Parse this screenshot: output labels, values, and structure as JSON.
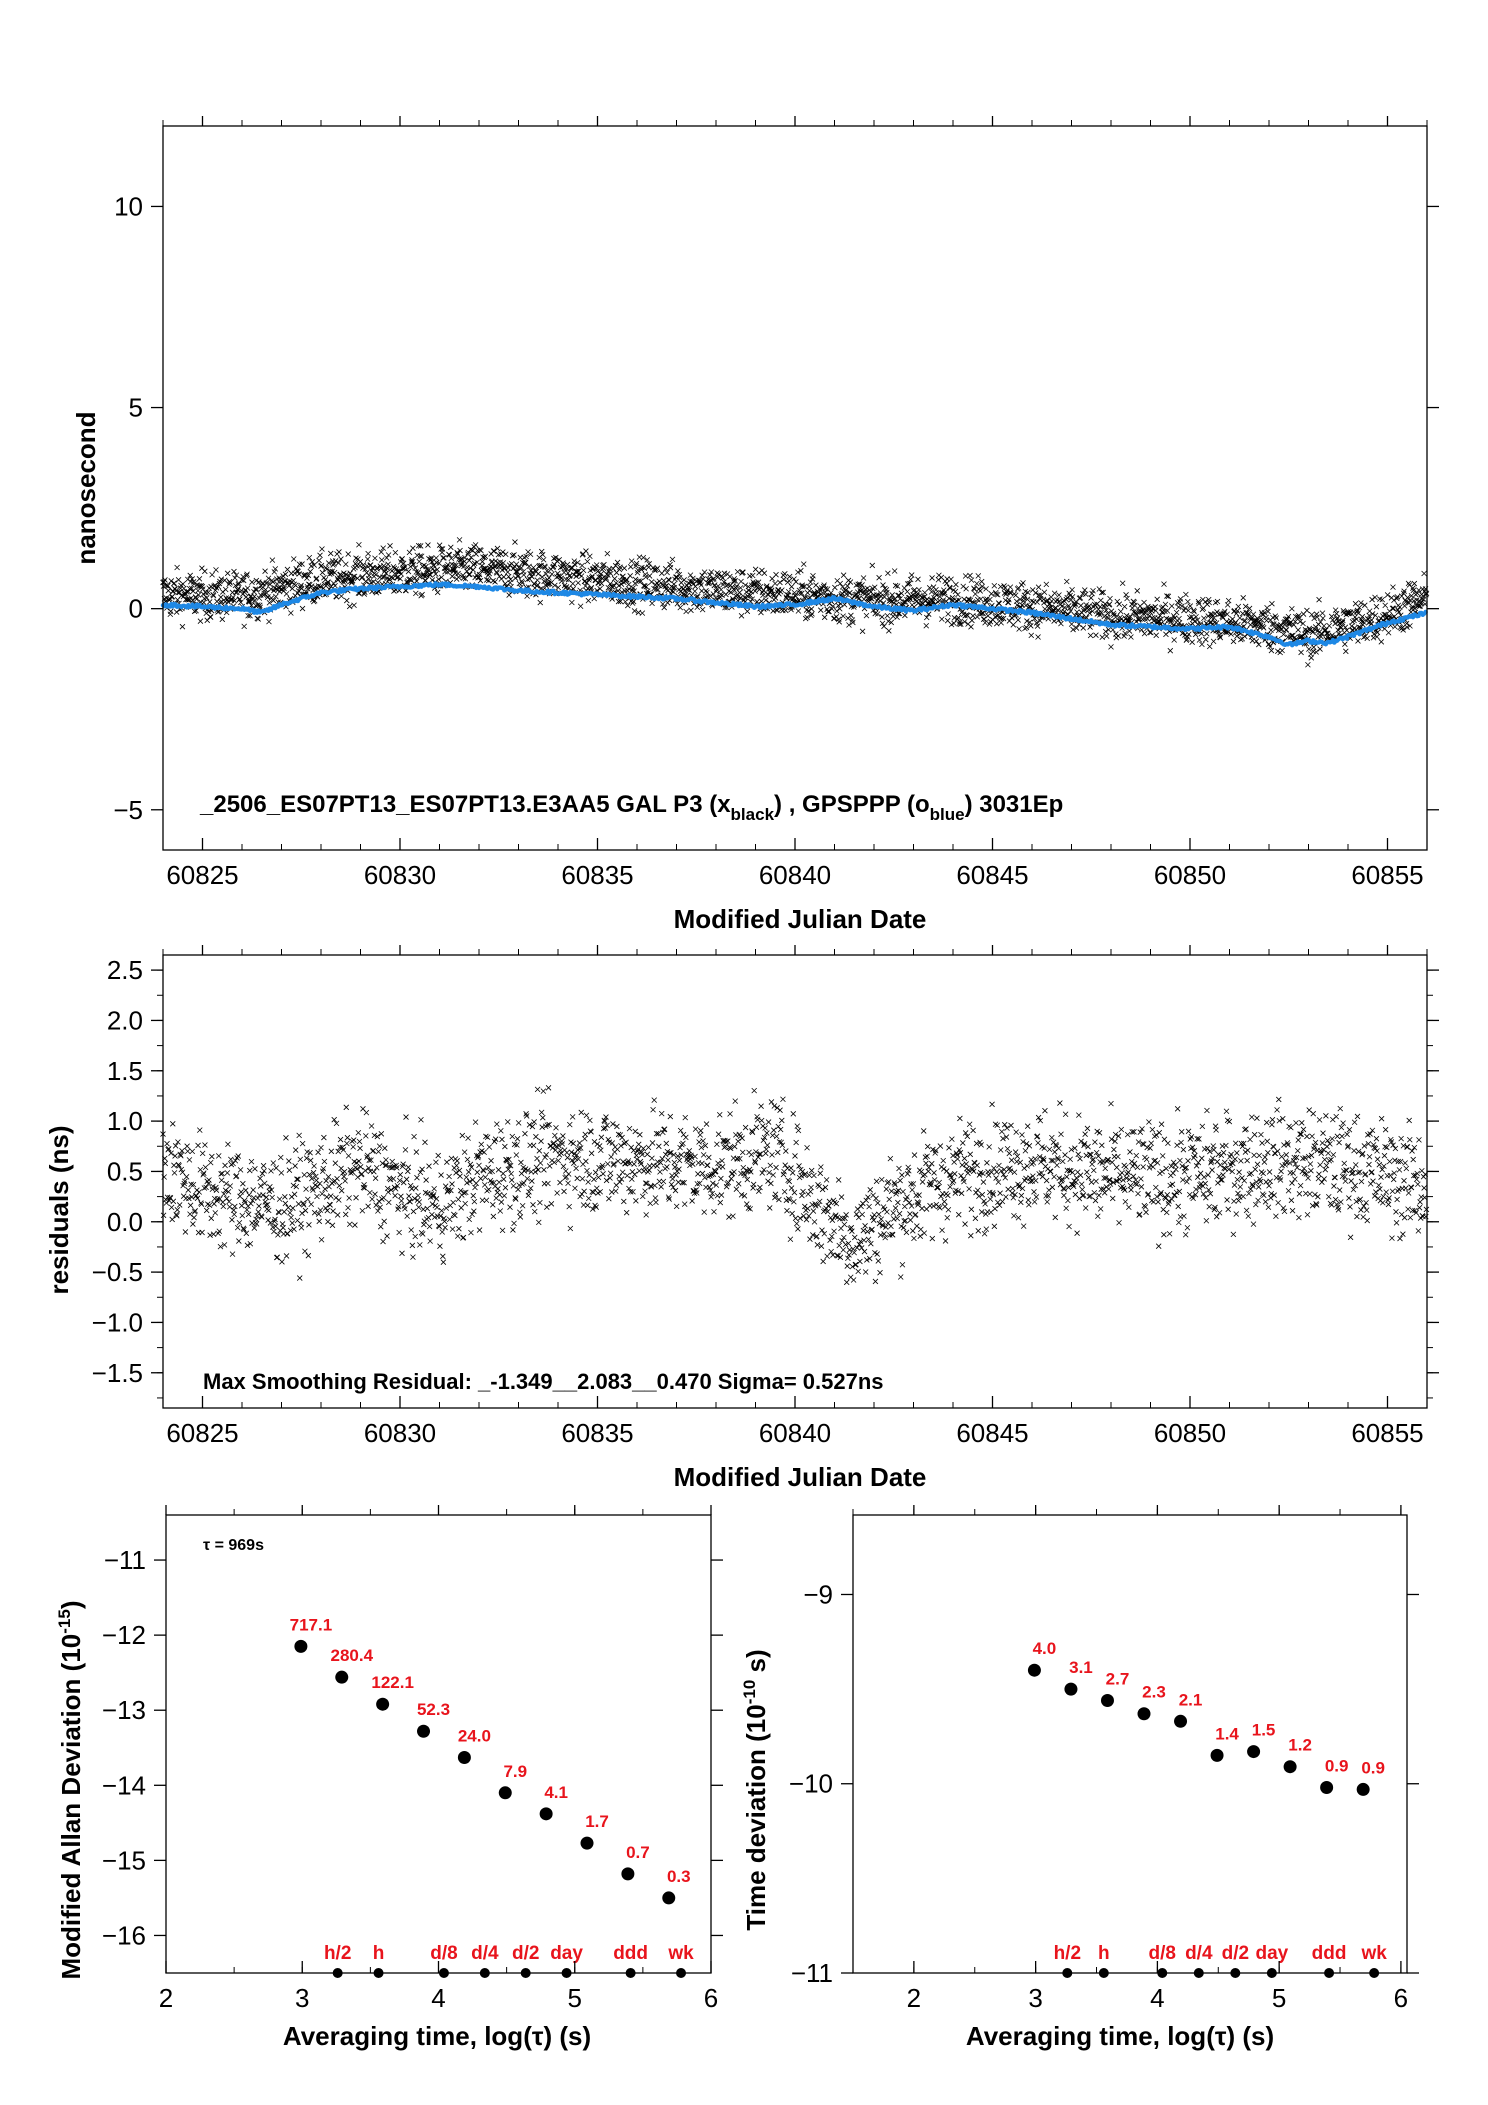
{
  "chart_data": [
    {
      "type": "scatter",
      "id": "phase",
      "title": "_2506_ES07PT13_ES07PT13.E3AA5     GAL P3 (x",
      "title_sub1": "black",
      "title_mid": ") ,  GPSPPP (o",
      "title_sub2": "blue",
      "title_end": ")  3031Ep",
      "xlabel": "Modified Julian Date",
      "ylabel": "nanosecond",
      "xlim": [
        60824,
        60856
      ],
      "ylim": [
        -6,
        12
      ],
      "xticks": [
        60825,
        60830,
        60835,
        60840,
        60845,
        60850,
        60855
      ],
      "xtick_labels": [
        "60825",
        "60830",
        "60835",
        "60840",
        "60845",
        "60850",
        "60855"
      ],
      "yticks": [
        -5,
        0,
        5,
        10
      ],
      "ytick_labels": [
        "−5",
        "0",
        "5",
        "10"
      ],
      "colors": {
        "black_series": "#000000",
        "blue_series": "#1e88e5"
      },
      "series": [
        {
          "marker": "x",
          "color": "#000000",
          "trend": [
            [
              60824,
              0.35
            ],
            [
              60826,
              0.3
            ],
            [
              60828,
              0.75
            ],
            [
              60830,
              0.9
            ],
            [
              60832,
              1.0
            ],
            [
              60834,
              0.8
            ],
            [
              60836,
              0.65
            ],
            [
              60838,
              0.45
            ],
            [
              60840,
              0.35
            ],
            [
              60842,
              0.2
            ],
            [
              60844,
              0.25
            ],
            [
              60846,
              0.05
            ],
            [
              60848,
              -0.2
            ],
            [
              60850,
              -0.25
            ],
            [
              60852,
              -0.45
            ],
            [
              60853,
              -0.65
            ],
            [
              60854.5,
              -0.3
            ],
            [
              60856,
              0.25
            ]
          ],
          "spread": 0.55
        },
        {
          "marker": "o",
          "color": "#1e88e5",
          "values": [
            [
              60824,
              0.1
            ],
            [
              60825,
              0.05
            ],
            [
              60826,
              0.0
            ],
            [
              60826.5,
              -0.1
            ],
            [
              60827,
              0.1
            ],
            [
              60828,
              0.4
            ],
            [
              60829,
              0.5
            ],
            [
              60830,
              0.55
            ],
            [
              60831,
              0.6
            ],
            [
              60832,
              0.55
            ],
            [
              60833,
              0.45
            ],
            [
              60834,
              0.4
            ],
            [
              60835,
              0.35
            ],
            [
              60836,
              0.3
            ],
            [
              60837,
              0.25
            ],
            [
              60838,
              0.15
            ],
            [
              60839,
              0.05
            ],
            [
              60840,
              0.1
            ],
            [
              60841,
              0.25
            ],
            [
              60842,
              0.05
            ],
            [
              60843,
              -0.05
            ],
            [
              60844,
              0.1
            ],
            [
              60845,
              0.0
            ],
            [
              60846,
              -0.1
            ],
            [
              60847,
              -0.25
            ],
            [
              60848,
              -0.4
            ],
            [
              60849,
              -0.45
            ],
            [
              60850,
              -0.5
            ],
            [
              60851,
              -0.45
            ],
            [
              60852,
              -0.7
            ],
            [
              60852.5,
              -0.9
            ],
            [
              60853,
              -0.8
            ],
            [
              60853.5,
              -0.85
            ],
            [
              60854,
              -0.7
            ],
            [
              60855,
              -0.35
            ],
            [
              60856,
              -0.1
            ]
          ]
        }
      ]
    },
    {
      "type": "scatter",
      "id": "residuals",
      "title": "Max Smoothing Residual: _-1.349__2.083__0.470  Sigma= 0.527ns",
      "xlabel": "Modified Julian Date",
      "ylabel": "residuals (ns)",
      "xlim": [
        60824,
        60856
      ],
      "ylim": [
        -1.85,
        2.65
      ],
      "xticks": [
        60825,
        60830,
        60835,
        60840,
        60845,
        60850,
        60855
      ],
      "xtick_labels": [
        "60825",
        "60830",
        "60835",
        "60840",
        "60845",
        "60850",
        "60855"
      ],
      "yticks": [
        -1.5,
        -1.0,
        -0.5,
        0.0,
        0.5,
        1.0,
        1.5,
        2.0,
        2.5
      ],
      "ytick_labels": [
        "−1.5",
        "−1.0",
        "−0.5",
        "0.0",
        "0.5",
        "1.0",
        "1.5",
        "2.0",
        "2.5"
      ],
      "series": [
        {
          "marker": "x",
          "color": "#000000",
          "trend": [
            [
              60824,
              0.55
            ],
            [
              60825,
              0.3
            ],
            [
              60827,
              0.15
            ],
            [
              60828,
              0.35
            ],
            [
              60829,
              0.55
            ],
            [
              60830,
              0.3
            ],
            [
              60831,
              0.15
            ],
            [
              60832,
              0.45
            ],
            [
              60834,
              0.65
            ],
            [
              60836,
              0.6
            ],
            [
              60838,
              0.55
            ],
            [
              60839.5,
              0.7
            ],
            [
              60840.5,
              0.2
            ],
            [
              60841.5,
              -0.2
            ],
            [
              60842.5,
              0.15
            ],
            [
              60844,
              0.45
            ],
            [
              60846,
              0.6
            ],
            [
              60848,
              0.45
            ],
            [
              60850,
              0.45
            ],
            [
              60852,
              0.6
            ],
            [
              60854,
              0.55
            ],
            [
              60856,
              0.35
            ]
          ],
          "spread": 0.45,
          "max_residual": 2.083,
          "min_residual": -1.349,
          "sigma": 0.527
        }
      ]
    },
    {
      "type": "scatter",
      "id": "mdev",
      "legend_text": "τ = 969s",
      "xlabel": "Averaging time, log(τ) (s)",
      "ylabel": "Modified Allan Deviation (10",
      "ylabel_sup": "-15",
      "ylabel_end": ")",
      "xlim": [
        2,
        6
      ],
      "ylim": [
        -16.5,
        -10.4
      ],
      "xticks": [
        2,
        3,
        4,
        5,
        6
      ],
      "xtick_labels": [
        "2",
        "3",
        "4",
        "5",
        "6"
      ],
      "yticks": [
        -16,
        -15,
        -14,
        -13,
        -12,
        -11
      ],
      "ytick_labels": [
        "−16",
        "−15",
        "−14",
        "−13",
        "−12",
        "−11"
      ],
      "x": [
        2.99,
        3.29,
        3.59,
        3.89,
        4.19,
        4.49,
        4.79,
        5.09,
        5.39,
        5.69
      ],
      "y": [
        -12.15,
        -12.56,
        -12.92,
        -13.28,
        -13.63,
        -14.1,
        -14.38,
        -14.77,
        -15.18,
        -15.5
      ],
      "labels": [
        "717.1",
        "280.4",
        "122.1",
        "52.3",
        "24.0",
        "7.9",
        "4.1",
        "1.7",
        "0.7",
        "0.3"
      ],
      "markers_x": [
        3.26,
        3.56,
        4.04,
        4.34,
        4.64,
        4.94,
        5.41,
        5.78
      ],
      "markers_labels": [
        "h/2",
        "h",
        "d/8",
        "d/4",
        "d/2",
        "day",
        "ddd",
        "wk"
      ],
      "markers_y": -16.5
    },
    {
      "type": "scatter",
      "id": "tdev",
      "xlabel": "Averaging time, log(τ) (s)",
      "ylabel": "Time deviation (10",
      "ylabel_sup": "-10",
      "ylabel_end": " s)",
      "xlim": [
        1.5,
        6.05
      ],
      "ylim": [
        -11,
        -8.58
      ],
      "xticks": [
        2,
        3,
        4,
        5,
        6
      ],
      "xtick_labels": [
        "2",
        "3",
        "4",
        "5",
        "6"
      ],
      "yticks": [
        -11,
        -10,
        -9
      ],
      "ytick_labels": [
        "−11",
        "−10",
        "−9"
      ],
      "x": [
        2.99,
        3.29,
        3.59,
        3.89,
        4.19,
        4.49,
        4.79,
        5.09,
        5.39,
        5.69
      ],
      "y": [
        -9.4,
        -9.5,
        -9.56,
        -9.63,
        -9.67,
        -9.85,
        -9.83,
        -9.91,
        -10.02,
        -10.03
      ],
      "labels": [
        "4.0",
        "3.1",
        "2.7",
        "2.3",
        "2.1",
        "1.4",
        "1.5",
        "1.2",
        "0.9",
        "0.9"
      ],
      "markers_x": [
        3.26,
        3.56,
        4.04,
        4.34,
        4.64,
        4.94,
        5.41,
        5.78
      ],
      "markers_labels": [
        "h/2",
        "h",
        "d/8",
        "d/4",
        "d/2",
        "day",
        "ddd",
        "wk"
      ],
      "markers_y": -11
    }
  ],
  "colors": {
    "label_red": "#e8141c",
    "axis": "#000000"
  }
}
